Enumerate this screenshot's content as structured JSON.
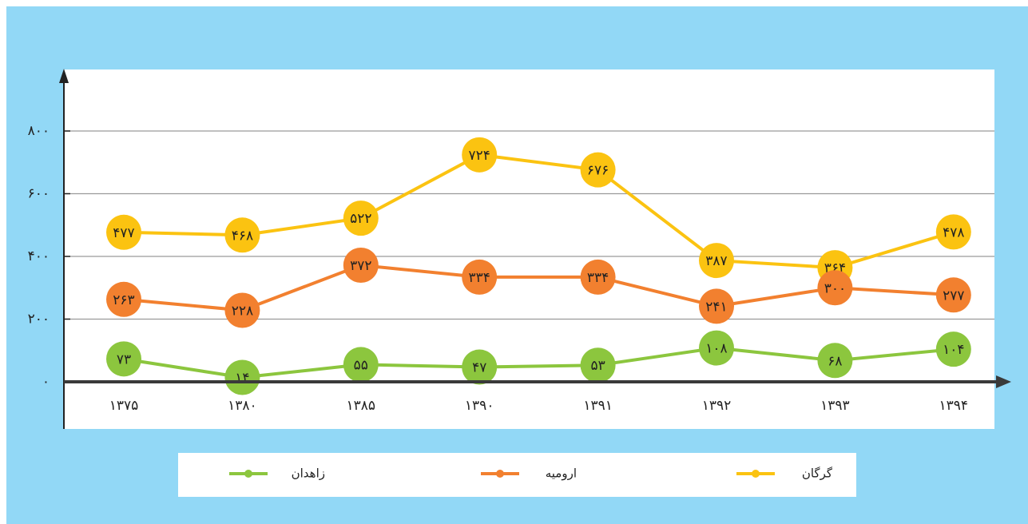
{
  "chart_data": {
    "type": "line",
    "categories": [
      "۱۳۷۵",
      "۱۳۸۰",
      "۱۳۸۵",
      "۱۳۹۰",
      "۱۳۹۱",
      "۱۳۹۲",
      "۱۳۹۳",
      "۱۳۹۴"
    ],
    "series": [
      {
        "name": "گرگان",
        "color": "#fbc311",
        "values": [
          477,
          468,
          522,
          724,
          676,
          387,
          364,
          478
        ],
        "value_labels": [
          "۴۷۷",
          "۴۶۸",
          "۵۲۲",
          "۷۲۴",
          "۶۷۶",
          "۳۸۷",
          "۳۶۴",
          "۴۷۸"
        ]
      },
      {
        "name": "ارومیه",
        "color": "#f2802f",
        "values": [
          263,
          228,
          372,
          334,
          334,
          241,
          300,
          277
        ],
        "value_labels": [
          "۲۶۳",
          "۲۲۸",
          "۳۷۲",
          "۳۳۴",
          "۳۳۴",
          "۲۴۱",
          "۳۰۰",
          "۲۷۷"
        ]
      },
      {
        "name": "زاهدان",
        "color": "#8cc63e",
        "values": [
          73,
          14,
          55,
          47,
          53,
          108,
          68,
          104
        ],
        "value_labels": [
          "۷۳",
          "۱۴",
          "۵۵",
          "۴۷",
          "۵۳",
          "۱۰۸",
          "۶۸",
          "۱۰۴"
        ]
      }
    ],
    "ylim": [
      0,
      1000
    ],
    "yticks": [
      {
        "value": 0,
        "label": "۰"
      },
      {
        "value": 200,
        "label": "۲۰۰"
      },
      {
        "value": 400,
        "label": "۴۰۰"
      },
      {
        "value": 600,
        "label": "۶۰۰"
      },
      {
        "value": 800,
        "label": "۸۰۰"
      }
    ],
    "grid": true
  }
}
